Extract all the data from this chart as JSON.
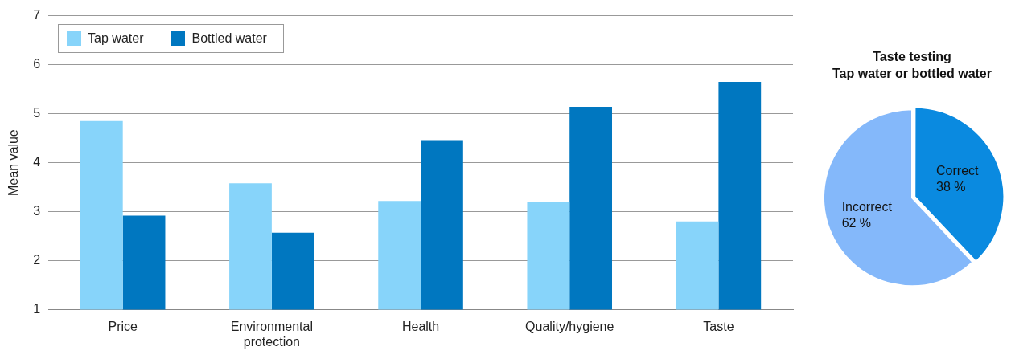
{
  "chart_data": [
    {
      "type": "bar",
      "ylabel": "Mean value",
      "categories": [
        "Price",
        "Environmental protection",
        "Health",
        "Quality/hygiene",
        "Taste"
      ],
      "series": [
        {
          "name": "Tap water",
          "color": "#87d4fa",
          "values": [
            4.85,
            3.58,
            3.22,
            3.19,
            2.8
          ]
        },
        {
          "name": "Bottled water",
          "color": "#0077c0",
          "values": [
            2.92,
            2.57,
            4.46,
            5.14,
            5.65
          ]
        }
      ],
      "ylim": [
        1,
        7
      ],
      "yticks": [
        1,
        2,
        3,
        4,
        5,
        6,
        7
      ],
      "grid": "y",
      "legend": "top left"
    },
    {
      "type": "pie",
      "title": "Taste testing",
      "subtitle": "Tap water or bottled water",
      "categories": [
        "Correct",
        "Incorrect"
      ],
      "values": [
        38,
        62
      ],
      "colors": [
        "#0a8ae0",
        "#84b8fa"
      ],
      "value_labels": [
        "38 %",
        "62 %"
      ]
    }
  ]
}
